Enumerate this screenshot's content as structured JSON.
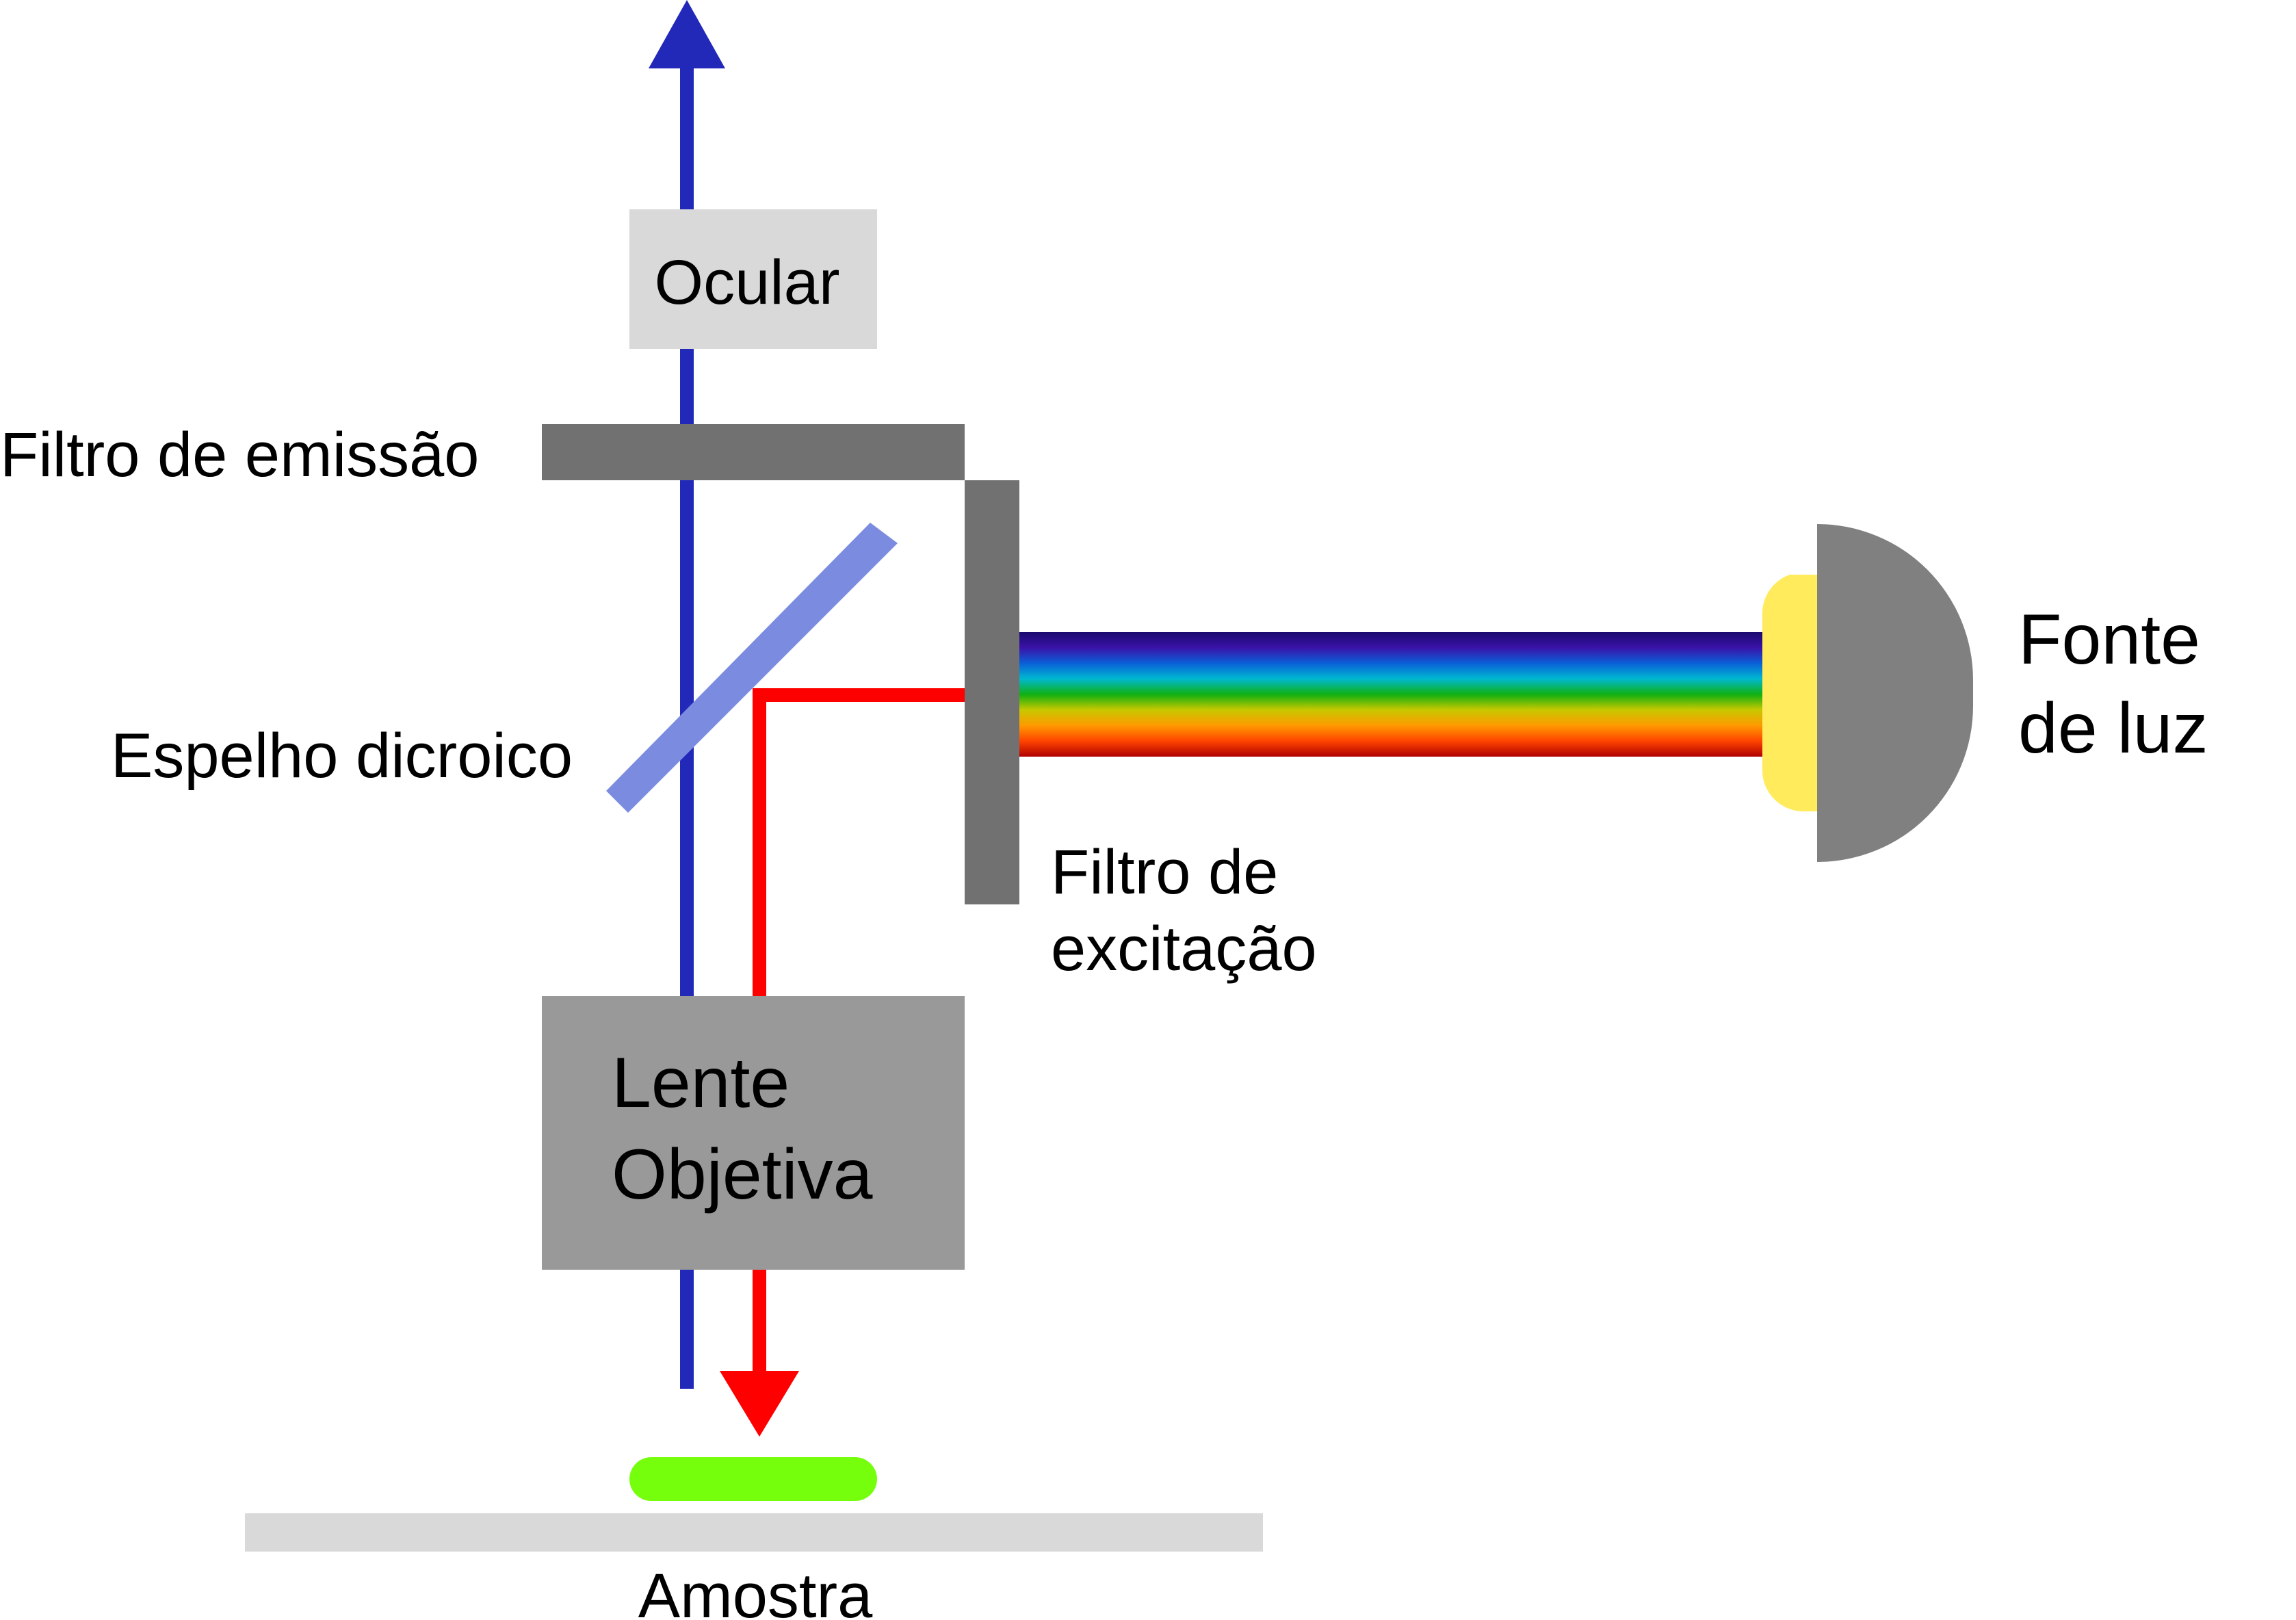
{
  "labels": {
    "ocular": "Ocular",
    "emission_filter": "Filtro de emissão",
    "dichroic_mirror": "Espelho dicroico",
    "excitation_filter_line1": "Filtro de",
    "excitation_filter_line2": "excitação",
    "light_source_line1": "Fonte",
    "light_source_line2": "de luz",
    "objective_line1": "Lente",
    "objective_line2": "Objetiva",
    "sample": "Amostra"
  },
  "colors": {
    "emission_beam": "#2228b8",
    "excitation_beam": "#ff0000",
    "filter": "#717171",
    "dichroic_mirror": "#7b8ce0",
    "ocular_box": "#d9d9d9",
    "objective_box": "#999999",
    "lamp_body": "#808080",
    "lamp_bulb": "#ffeb5c",
    "specimen": "#76ff0d",
    "slide": "#d9d9d9"
  },
  "spectrum_stops": [
    "#1a0a6e",
    "#3a12a8",
    "#0a60d8",
    "#00b8d0",
    "#10b010",
    "#c8c800",
    "#ff9900",
    "#ff4400",
    "#b00000"
  ]
}
